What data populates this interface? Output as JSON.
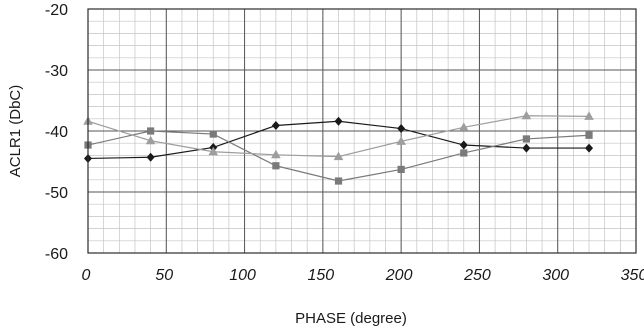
{
  "chart_data": {
    "type": "line",
    "title": "",
    "xlabel": "PHASE (degree)",
    "ylabel": "ACLR1 (DbC)",
    "xlim": [
      0,
      350
    ],
    "ylim": [
      -60,
      -20
    ],
    "x_ticks": [
      0,
      50,
      100,
      150,
      200,
      250,
      300,
      350
    ],
    "y_ticks": [
      -20,
      -30,
      -40,
      -50,
      -60
    ],
    "x_tick_labels": [
      "0",
      "50",
      "100",
      "150",
      "200",
      "250",
      "300",
      "350"
    ],
    "y_tick_labels": [
      "-20",
      "-30",
      "-40",
      "-50",
      "-60"
    ],
    "grid": true,
    "minor_grid": {
      "x_step": 10,
      "y_step": 2
    },
    "series": [
      {
        "marker": "diamond",
        "color": "#1a1a1a",
        "x": [
          0,
          40,
          80,
          120,
          160,
          200,
          240,
          280,
          320
        ],
        "y": [
          -44.5,
          -44.3,
          -42.7,
          -39.1,
          -38.4,
          -39.6,
          -42.3,
          -42.8,
          -42.8
        ]
      },
      {
        "marker": "square",
        "color": "#7a7a7a",
        "x": [
          0,
          40,
          80,
          120,
          160,
          200,
          240,
          280,
          320
        ],
        "y": [
          -42.3,
          -40.0,
          -40.5,
          -45.7,
          -48.2,
          -46.3,
          -43.6,
          -41.3,
          -40.7
        ]
      },
      {
        "marker": "triangle",
        "color": "#9e9e9e",
        "x": [
          0,
          40,
          80,
          120,
          160,
          200,
          240,
          280,
          320
        ],
        "y": [
          -38.4,
          -41.6,
          -43.4,
          -43.9,
          -44.2,
          -41.7,
          -39.4,
          -37.5,
          -37.6
        ]
      }
    ]
  }
}
